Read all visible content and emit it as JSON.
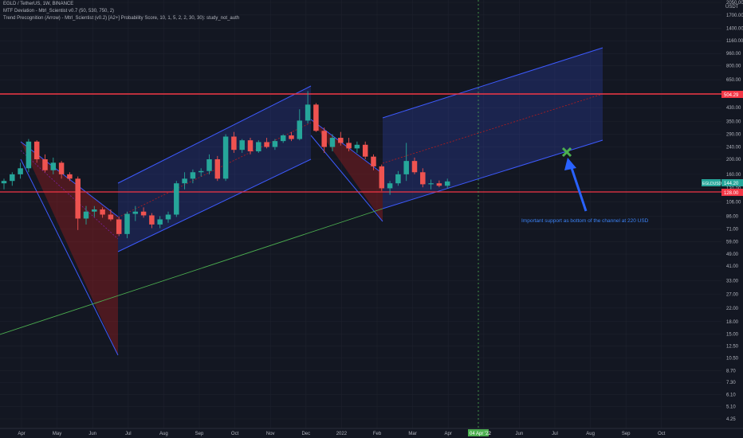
{
  "header": {
    "symbol_line": "EGLD / TetherUS, 1W, BINANCE",
    "indicator_1": "MTF Deviation - Mtrl_Scientist v0.7 (50, 530, 750, 2)",
    "indicator_2": "Trend Precognition (Arrow) - Mtrl_Scientist (v0.2) [A2+] Probability Score, 10, 1, 5, 2, 2, 30, 30): study_not_auth"
  },
  "axis": {
    "y_ticks": [
      "4.25",
      "5.10",
      "6.10",
      "7.30",
      "8.70",
      "10.50",
      "12.50",
      "15.00",
      "18.00",
      "22.00",
      "27.00",
      "33.00",
      "41.00",
      "49.00",
      "59.00",
      "71.00",
      "86.00",
      "106.00",
      "130.00",
      "160.00",
      "200.00",
      "240.00",
      "290.00",
      "350.00",
      "430.00",
      "530.00",
      "650.00",
      "800.00",
      "960.00",
      "1160.00",
      "1400.00",
      "1700.00",
      "2050.00"
    ],
    "y_unit": "USDT",
    "x_ticks": [
      "Apr",
      "May",
      "Jun",
      "Jul",
      "Aug",
      "Sep",
      "Oct",
      "Nov",
      "Dec",
      "2022",
      "Feb",
      "Mar",
      "Apr",
      "May",
      "Jun",
      "Jul",
      "Aug",
      "Sep",
      "Oct"
    ],
    "date_marker": "04 Apr '22",
    "price_tags": {
      "upper_line": "504.29",
      "current": "144.20",
      "symbol_tag": "EGLDUSDT",
      "lower_line": "128.00"
    }
  },
  "annotations": {
    "support_note": "Important support as bottom of the channel at 220 USD"
  },
  "colors": {
    "background": "#131722",
    "up": "#26a69a",
    "down": "#ef5350",
    "channel": "#3d5afe",
    "hline": "#f23645",
    "trendline": "#4caf50",
    "marker": "#4caf50",
    "arrow": "#2962ff"
  },
  "chart_data": {
    "type": "candlestick",
    "scale": "log",
    "interval": "1W",
    "ylim": [
      4.25,
      2050
    ],
    "horizontal_lines": [
      504.29,
      128.0
    ],
    "candles": [
      {
        "o": 140,
        "h": 150,
        "l": 128,
        "c": 145
      },
      {
        "o": 145,
        "h": 165,
        "l": 135,
        "c": 160
      },
      {
        "o": 160,
        "h": 190,
        "l": 150,
        "c": 175
      },
      {
        "o": 175,
        "h": 270,
        "l": 165,
        "c": 260
      },
      {
        "o": 260,
        "h": 265,
        "l": 190,
        "c": 200
      },
      {
        "o": 200,
        "h": 215,
        "l": 165,
        "c": 170
      },
      {
        "o": 170,
        "h": 205,
        "l": 160,
        "c": 190
      },
      {
        "o": 190,
        "h": 195,
        "l": 150,
        "c": 160
      },
      {
        "o": 160,
        "h": 165,
        "l": 145,
        "c": 150
      },
      {
        "o": 150,
        "h": 155,
        "l": 70,
        "c": 83
      },
      {
        "o": 83,
        "h": 100,
        "l": 76,
        "c": 92
      },
      {
        "o": 92,
        "h": 100,
        "l": 85,
        "c": 95
      },
      {
        "o": 95,
        "h": 98,
        "l": 84,
        "c": 88
      },
      {
        "o": 88,
        "h": 95,
        "l": 80,
        "c": 82
      },
      {
        "o": 82,
        "h": 85,
        "l": 64,
        "c": 66
      },
      {
        "o": 66,
        "h": 92,
        "l": 62,
        "c": 89
      },
      {
        "o": 89,
        "h": 100,
        "l": 80,
        "c": 92
      },
      {
        "o": 92,
        "h": 98,
        "l": 84,
        "c": 87
      },
      {
        "o": 87,
        "h": 90,
        "l": 72,
        "c": 76
      },
      {
        "o": 76,
        "h": 86,
        "l": 72,
        "c": 82
      },
      {
        "o": 82,
        "h": 92,
        "l": 78,
        "c": 88
      },
      {
        "o": 88,
        "h": 145,
        "l": 85,
        "c": 140
      },
      {
        "o": 140,
        "h": 165,
        "l": 128,
        "c": 150
      },
      {
        "o": 150,
        "h": 172,
        "l": 140,
        "c": 165
      },
      {
        "o": 165,
        "h": 175,
        "l": 155,
        "c": 168
      },
      {
        "o": 168,
        "h": 215,
        "l": 160,
        "c": 200
      },
      {
        "o": 200,
        "h": 210,
        "l": 145,
        "c": 150
      },
      {
        "o": 150,
        "h": 290,
        "l": 145,
        "c": 280
      },
      {
        "o": 280,
        "h": 300,
        "l": 220,
        "c": 230
      },
      {
        "o": 230,
        "h": 270,
        "l": 220,
        "c": 265
      },
      {
        "o": 265,
        "h": 275,
        "l": 215,
        "c": 225
      },
      {
        "o": 225,
        "h": 265,
        "l": 220,
        "c": 258
      },
      {
        "o": 258,
        "h": 275,
        "l": 235,
        "c": 240
      },
      {
        "o": 240,
        "h": 270,
        "l": 230,
        "c": 262
      },
      {
        "o": 262,
        "h": 290,
        "l": 255,
        "c": 285
      },
      {
        "o": 285,
        "h": 300,
        "l": 262,
        "c": 270
      },
      {
        "o": 270,
        "h": 420,
        "l": 265,
        "c": 355
      },
      {
        "o": 355,
        "h": 550,
        "l": 340,
        "c": 450
      },
      {
        "o": 450,
        "h": 460,
        "l": 300,
        "c": 305
      },
      {
        "o": 305,
        "h": 320,
        "l": 220,
        "c": 240
      },
      {
        "o": 240,
        "h": 290,
        "l": 225,
        "c": 275
      },
      {
        "o": 275,
        "h": 300,
        "l": 245,
        "c": 255
      },
      {
        "o": 255,
        "h": 275,
        "l": 225,
        "c": 235
      },
      {
        "o": 235,
        "h": 260,
        "l": 220,
        "c": 248
      },
      {
        "o": 248,
        "h": 260,
        "l": 200,
        "c": 208
      },
      {
        "o": 208,
        "h": 215,
        "l": 170,
        "c": 180
      },
      {
        "o": 180,
        "h": 185,
        "l": 125,
        "c": 130
      },
      {
        "o": 130,
        "h": 145,
        "l": 118,
        "c": 140
      },
      {
        "o": 140,
        "h": 168,
        "l": 135,
        "c": 160
      },
      {
        "o": 160,
        "h": 255,
        "l": 145,
        "c": 195
      },
      {
        "o": 195,
        "h": 205,
        "l": 160,
        "c": 165
      },
      {
        "o": 165,
        "h": 175,
        "l": 132,
        "c": 138
      },
      {
        "o": 138,
        "h": 148,
        "l": 128,
        "c": 140
      },
      {
        "o": 140,
        "h": 146,
        "l": 132,
        "c": 135
      },
      {
        "o": 135,
        "h": 150,
        "l": 130,
        "c": 144
      }
    ]
  }
}
